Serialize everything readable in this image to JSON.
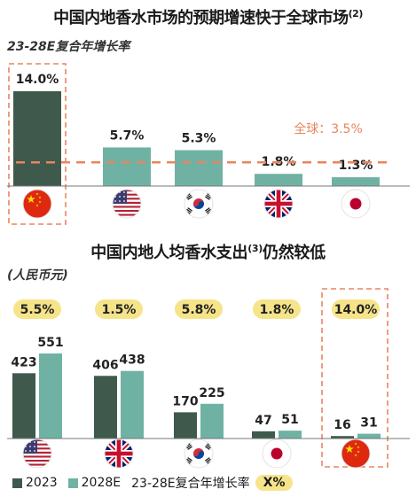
{
  "colors": {
    "bar_dark": "#3f5a4d",
    "bar_teal": "#6fb2a4",
    "accent_orange": "#e9855d",
    "growth_pill": "#f6e48a",
    "axis": "#777777"
  },
  "header": {
    "title1": "中国内地香水市场的预期增速快于全球市场",
    "title1_sup": "(2)",
    "subtitle1": "23-28E复合年增长率",
    "title2": "中国内地人均香水支出",
    "title2_sup": "(3)",
    "title2_tail": "仍然较低",
    "subtitle2": "(人民币元)"
  },
  "legend": {
    "s2023": "2023",
    "s2028": "2028E",
    "cagr_label": "23-28E复合年增长率",
    "cagr_badge": "X%"
  },
  "chart_data": [
    {
      "type": "bar",
      "title": "中国内地香水市场的预期增速快于全球市场(2)",
      "ylabel": "23-28E复合年增长率",
      "categories": [
        "China",
        "US",
        "South Korea",
        "UK",
        "Japan"
      ],
      "category_icons": [
        "china-flag",
        "us-flag",
        "korea-flag",
        "uk-flag",
        "japan-flag"
      ],
      "value_labels": [
        "14.0%",
        "5.7%",
        "5.3%",
        "1.8%",
        "1.3%"
      ],
      "values": [
        14.0,
        5.7,
        5.3,
        1.8,
        1.3
      ],
      "reference_line": {
        "label": "全球：3.5%",
        "value": 3.5
      },
      "highlight": "China",
      "ylim": [
        0,
        14.5
      ]
    },
    {
      "type": "bar",
      "title": "中国内地人均香水支出(3)仍然较低",
      "ylabel": "(人民币元)",
      "categories": [
        "US",
        "UK",
        "South Korea",
        "Japan",
        "China"
      ],
      "category_icons": [
        "us-flag",
        "uk-flag",
        "korea-flag",
        "japan-flag",
        "china-flag"
      ],
      "series": [
        {
          "name": "2023",
          "values": [
            423,
            406,
            170,
            47,
            16
          ]
        },
        {
          "name": "2028E",
          "values": [
            551,
            438,
            225,
            51,
            31
          ]
        }
      ],
      "cagr_labels": [
        "5.5%",
        "1.5%",
        "5.8%",
        "1.8%",
        "14.0%"
      ],
      "highlight": "China",
      "ylim": [
        0,
        600
      ]
    }
  ]
}
